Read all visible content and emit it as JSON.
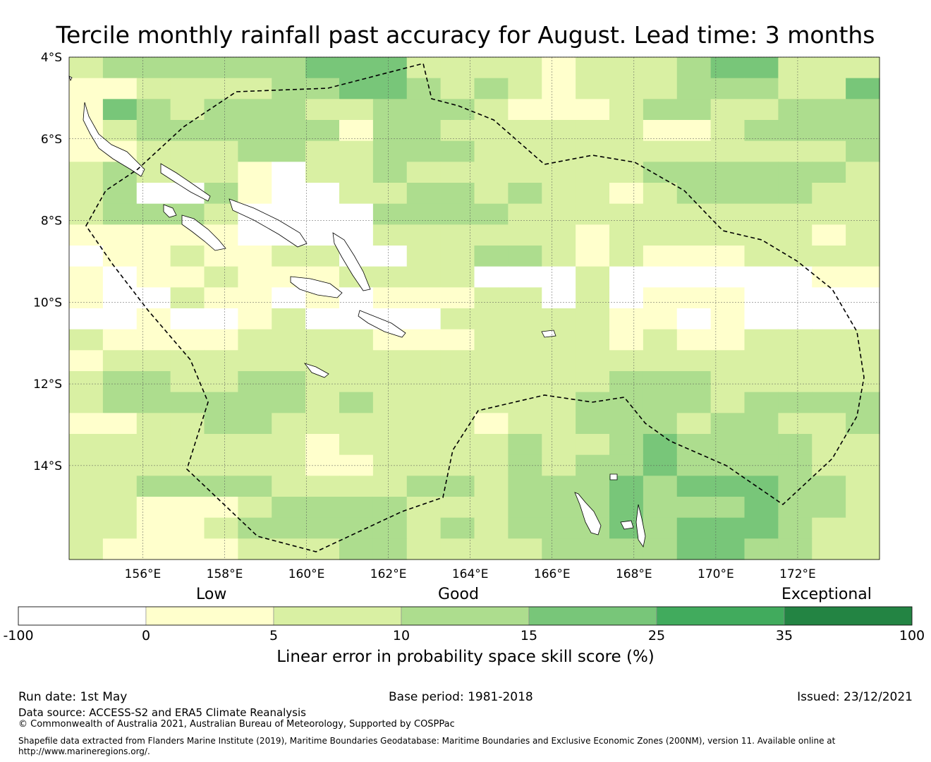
{
  "title": "Tercile monthly rainfall past accuracy for August. Lead time: 3 months",
  "map": {
    "lon_ticks": [
      "156°E",
      "158°E",
      "160°E",
      "162°E",
      "164°E",
      "166°E",
      "168°E",
      "170°E",
      "172°E"
    ],
    "lat_ticks": [
      "4°S",
      "6°S",
      "8°S",
      "10°S",
      "12°S",
      "14°S"
    ],
    "lon_range": [
      154.2,
      174.0
    ],
    "lat_range": [
      -4.0,
      -16.3
    ],
    "grid_rows": [
      "233333344422221222344222222",
      "112222334432321222333224433",
      "143233322333211123322333333",
      "123333331332222221123333322",
      "112223322333222222222223322",
      "232221022322222223333332323",
      "230031002233232212333322222",
      "23332000033332222222222232",
      "1111100002222221222222121322",
      "011211220022332121112222221",
      "101121112222000200000011001",
      "10021101011122020111000000",
      "001001200002222211010000000",
      "211112222111222212112222110",
      "12222222222222222222222221",
      "233223322222222233322222222",
      "233333323222222333323333332",
      "112233222222122333233223322",
      "222222212222232234333322222",
      "222222211222232334333322222",
      "223333222233233343444332333",
      "221112333322233343334332333",
      "221123333323233343444322333",
      "211112223322223333443322223"
    ],
    "nodata_cells": [],
    "colors": [
      "#ffffff",
      "#ffffcc",
      "#d9f0a3",
      "#addd8e",
      "#78c679",
      "#41ab5d",
      "#238443"
    ]
  },
  "colorbar": {
    "category_labels": [
      "Low",
      "Good",
      "Exceptional"
    ],
    "ticks": [
      "-100",
      "0",
      "5",
      "10",
      "15",
      "25",
      "35",
      "100"
    ],
    "colors": [
      "#ffffff",
      "#ffffcc",
      "#d9f0a3",
      "#addd8e",
      "#78c679",
      "#41ab5d",
      "#238443"
    ],
    "title": "Linear error in probability space skill score (%)"
  },
  "footer": {
    "run_date": "Run date: 1st May",
    "base_period": "Base period: 1981-2018",
    "issued": "Issued: 23/12/2021",
    "data_source": "Data source: ACCESS-S2 and ERA5 Climate Reanalysis",
    "copyright": "© Commonwealth of Australia 2021, Australian Bureau of Meteorology, Supported by COSPPac",
    "shapefile_line1": "Shapefile data extracted from Flanders Marine Institute (2019), Maritime Boundaries Geodatabase: Maritime Boundaries and Exclusive Economic Zones (200NM), version 11. Available online at",
    "shapefile_line2": "http://www.marineregions.org/."
  }
}
